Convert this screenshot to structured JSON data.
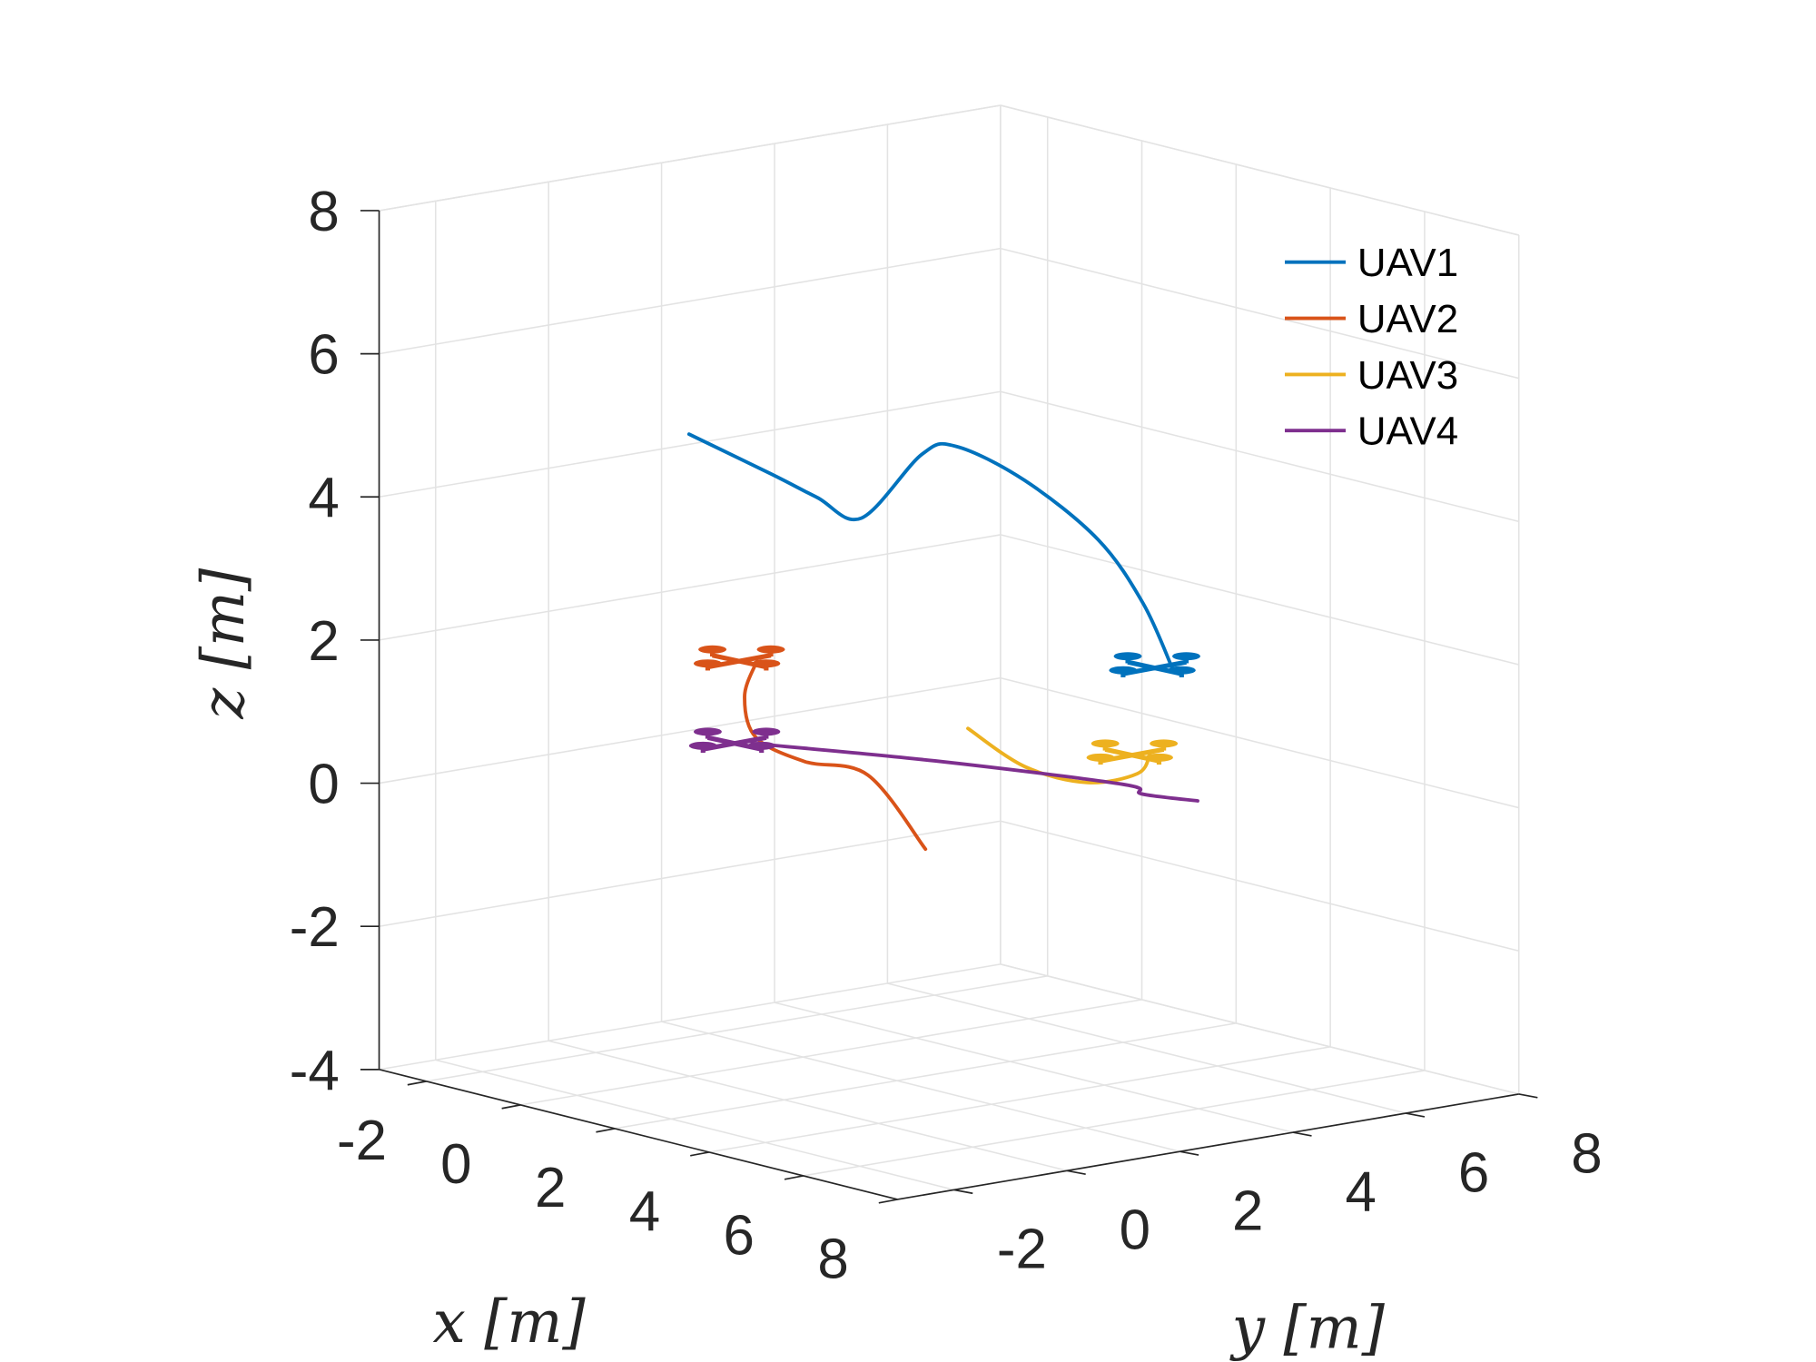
{
  "chart_data": {
    "type": "line3d",
    "title": "",
    "xlabel": "x [m]",
    "ylabel": "y [m]",
    "zlabel": "z [m]",
    "xlim": [
      -3,
      8
    ],
    "ylim": [
      -3,
      8
    ],
    "zlim": [
      -4,
      8
    ],
    "xticks": [
      "-2",
      "0",
      "2",
      "4",
      "6",
      "8"
    ],
    "yticks": [
      "-2",
      "0",
      "2",
      "4",
      "6",
      "8"
    ],
    "zticks": [
      "-4",
      "-2",
      "0",
      "2",
      "4",
      "6",
      "8"
    ],
    "grid": true,
    "legend_position": "top-right",
    "series": [
      {
        "name": "UAV1",
        "color": "#0072BD",
        "drone_at": "end",
        "points": [
          [
            0.1,
            -0.1,
            5
          ],
          [
            1.0,
            0.6,
            4.5
          ],
          [
            1.5,
            1.0,
            4.2
          ],
          [
            2.2,
            1.2,
            4
          ],
          [
            4.2,
            0.6,
            5.3
          ],
          [
            4.8,
            0.7,
            5.5
          ],
          [
            5.3,
            1.5,
            5
          ],
          [
            5.3,
            2.8,
            4
          ],
          [
            5.3,
            3.6,
            3
          ],
          [
            5.2,
            4.2,
            2
          ]
        ]
      },
      {
        "name": "UAV2",
        "color": "#D95319",
        "drone_at": "end",
        "points": [
          [
            3.2,
            1.5,
            -0.5
          ],
          [
            1.5,
            1.9,
            0.2
          ],
          [
            1.0,
            1.2,
            0.4
          ],
          [
            0.8,
            0.5,
            0.8
          ],
          [
            0.8,
            0.3,
            1.4
          ],
          [
            1.3,
            0.1,
            2
          ]
        ]
      },
      {
        "name": "UAV3",
        "color": "#EDB120",
        "drone_at": "end",
        "points": [
          [
            4.7,
            1.0,
            1.5
          ],
          [
            4.6,
            2.1,
            0.8
          ],
          [
            5.2,
            2.7,
            0.6
          ],
          [
            5.9,
            3.0,
            0.8
          ],
          [
            5.8,
            3.3,
            1
          ]
        ]
      },
      {
        "name": "UAV4",
        "color": "#7E2F8E",
        "drone_at": "start",
        "points": [
          [
            1.8,
            -0.4,
            1
          ],
          [
            2.8,
            2.0,
            0.6
          ],
          [
            4.5,
            3.9,
            0.3
          ],
          [
            4.8,
            4.0,
            0.2
          ],
          [
            4.9,
            4.9,
            0
          ]
        ]
      }
    ]
  }
}
